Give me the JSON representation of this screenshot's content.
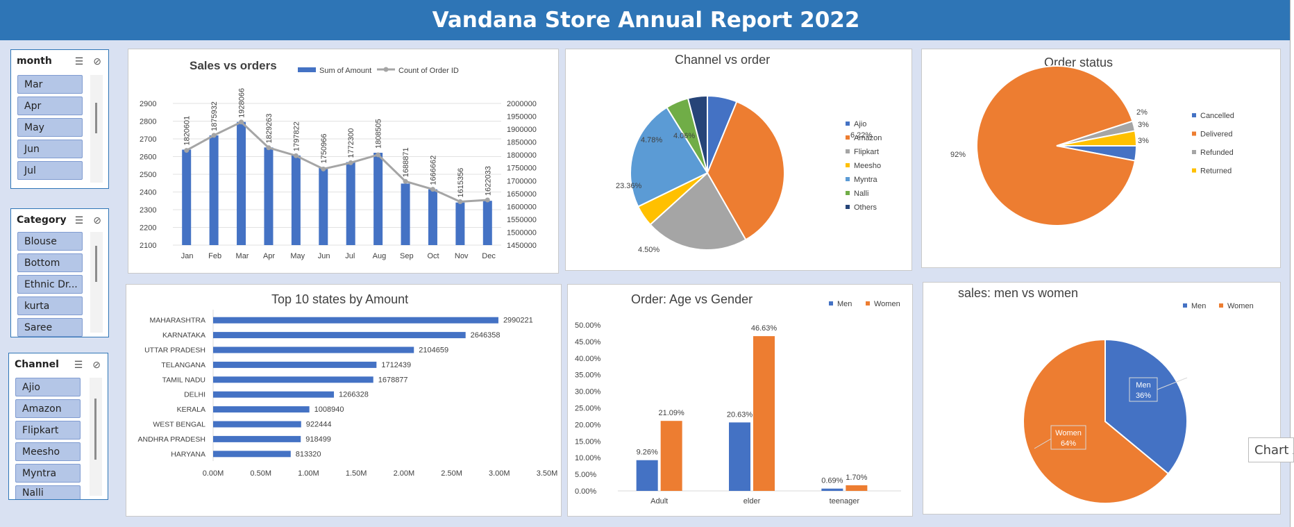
{
  "report_title": "Vandana Store Annual Report 2022",
  "slicers": [
    {
      "title": "month",
      "items": [
        "Mar",
        "Apr",
        "May",
        "Jun",
        "Jul"
      ]
    },
    {
      "title": "Category",
      "items": [
        "Blouse",
        "Bottom",
        "Ethnic Dr...",
        "kurta",
        "Saree"
      ]
    },
    {
      "title": "Channel",
      "items": [
        "Ajio",
        "Amazon",
        "Flipkart",
        "Meesho",
        "Myntra",
        "Nalli"
      ]
    }
  ],
  "tooltip_text": "Chart Ar",
  "colors": {
    "blue": "#4472c4",
    "orange": "#ed7d31",
    "gray": "#a5a5a5",
    "yellow": "#ffc000",
    "lightblue": "#5b9bd5",
    "green": "#70ad47",
    "navy": "#264478",
    "title_bar": "#2e75b6"
  },
  "chart_data": [
    {
      "id": "sales_vs_orders",
      "type": "bar",
      "title": "Sales vs orders",
      "categories": [
        "Jan",
        "Feb",
        "Mar",
        "Apr",
        "May",
        "Jun",
        "Jul",
        "Aug",
        "Sep",
        "Oct",
        "Nov",
        "Dec"
      ],
      "series": [
        {
          "name": "Sum of Amount",
          "type": "bar",
          "axis": "secondary",
          "values": [
            1820601,
            1875932,
            1928066,
            1829263,
            1797822,
            1750966,
            1772300,
            1808505,
            1688871,
            1666662,
            1615356,
            1622033
          ]
        },
        {
          "name": "Count of Order ID",
          "type": "line",
          "axis": "primary",
          "values": [
            2635,
            2720,
            2795,
            2650,
            2605,
            2530,
            2565,
            2610,
            2460,
            2415,
            2345,
            2355
          ]
        }
      ],
      "primary_axis_ticks": [
        2100,
        2200,
        2300,
        2400,
        2500,
        2600,
        2700,
        2800,
        2900
      ],
      "secondary_axis_ticks": [
        1450000,
        1500000,
        1550000,
        1600000,
        1650000,
        1700000,
        1750000,
        1800000,
        1850000,
        1900000,
        1950000,
        2000000
      ],
      "ylim_primary": [
        2100,
        2900
      ],
      "ylim_secondary": [
        1450000,
        2000000
      ],
      "legend": "top",
      "grid": true
    },
    {
      "id": "channel_vs_order",
      "type": "pie",
      "title": "Channel vs order",
      "labels": [
        "Ajio",
        "Amazon",
        "Flipkart",
        "Meesho",
        "Myntra",
        "Nalli",
        "Others"
      ],
      "values": [
        6.22,
        35.48,
        21.59,
        4.5,
        23.36,
        4.78,
        4.06
      ],
      "value_labels": [
        "6.22%",
        "35.48%",
        "21.59%",
        "4.50%",
        "23.36%",
        "4.78%",
        "4.06%"
      ],
      "legend": "right"
    },
    {
      "id": "order_status",
      "type": "pie",
      "title": "Order status",
      "labels": [
        "Cancelled",
        "Delivered",
        "Refunded",
        "Returned"
      ],
      "values": [
        3,
        92,
        2,
        3
      ],
      "value_labels": [
        "3%",
        "92%",
        "2%",
        "3%"
      ],
      "legend": "right"
    },
    {
      "id": "top_states",
      "type": "bar",
      "orientation": "horizontal",
      "title": "Top 10 states by Amount",
      "categories": [
        "MAHARASHTRA",
        "KARNATAKA",
        "UTTAR PRADESH",
        "TELANGANA",
        "TAMIL NADU",
        "DELHI",
        "KERALA",
        "WEST BENGAL",
        "ANDHRA PRADESH",
        "HARYANA"
      ],
      "values": [
        2990221,
        2646358,
        2104659,
        1712439,
        1678877,
        1266328,
        1008940,
        922444,
        918499,
        813320
      ],
      "x_ticks": [
        "0.00M",
        "0.50M",
        "1.00M",
        "1.50M",
        "2.00M",
        "2.50M",
        "3.00M",
        "3.50M"
      ],
      "xlim": [
        0,
        3500000
      ]
    },
    {
      "id": "age_vs_gender",
      "type": "bar",
      "title": "Order: Age vs Gender",
      "categories": [
        "Adult",
        "elder",
        "teenager"
      ],
      "series": [
        {
          "name": "Men",
          "values": [
            9.26,
            20.63,
            0.69
          ],
          "labels": [
            "9.26%",
            "20.63%",
            "0.69%"
          ]
        },
        {
          "name": "Women",
          "values": [
            21.09,
            46.63,
            1.7
          ],
          "labels": [
            "21.09%",
            "46.63%",
            "1.70%"
          ]
        }
      ],
      "y_ticks": [
        "0.00%",
        "5.00%",
        "10.00%",
        "15.00%",
        "20.00%",
        "25.00%",
        "30.00%",
        "35.00%",
        "40.00%",
        "45.00%",
        "50.00%"
      ],
      "ylim": [
        0,
        50
      ],
      "legend": "top-right"
    },
    {
      "id": "men_vs_women",
      "type": "pie",
      "title": "sales: men vs women",
      "labels": [
        "Men",
        "Women"
      ],
      "values": [
        36,
        64
      ],
      "value_labels": [
        "36%",
        "64%"
      ],
      "legend": "top-right"
    }
  ]
}
